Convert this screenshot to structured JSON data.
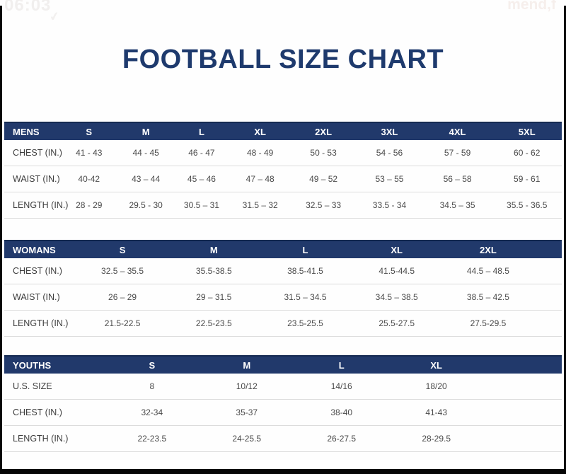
{
  "page": {
    "title": "FOOTBALL SIZE CHART",
    "title_color": "#1e3a6d",
    "header_bar_color": "#21396b",
    "frame_color": "#060606",
    "watermarks": {
      "top_left_time": "06:03",
      "top_left_icon": "check-mark",
      "top_right_text": "mend,f"
    }
  },
  "tables": [
    {
      "id": "mens",
      "header": {
        "label": "MENS",
        "cols": [
          "S",
          "M",
          "L",
          "XL",
          "2XL",
          "3XL",
          "4XL",
          "5XL"
        ]
      },
      "col_widths": [
        "10%",
        "10.4%",
        "10%",
        "10%",
        "11%",
        "11.7%",
        "12%",
        "12.4%",
        "12.5%"
      ],
      "filler_cols": 0,
      "rows": [
        {
          "label": "CHEST (IN.)",
          "values": [
            "41 - 43",
            "44 - 45",
            "46 - 47",
            "48 - 49",
            "50 - 53",
            "54 - 56",
            "57 - 59",
            "60 - 62"
          ]
        },
        {
          "label": "WAIST (IN.)",
          "values": [
            "40-42",
            "43 – 44",
            "45 – 46",
            "47 – 48",
            "49 – 52",
            "53 – 55",
            "56 – 58",
            "59 - 61"
          ]
        },
        {
          "label": "LENGTH (IN.)",
          "values": [
            "28 - 29",
            "29.5 - 30",
            "30.5 – 31",
            "31.5 – 32",
            "32.5 – 33",
            "33.5 - 34",
            "34.5 – 35",
            "35.5 - 36.5"
          ]
        }
      ]
    },
    {
      "id": "womans",
      "header": {
        "label": "WOMANS",
        "cols": [
          "S",
          "M",
          "L",
          "XL",
          "2XL"
        ]
      },
      "col_widths": [
        "13%",
        "16.4%",
        "16.4%",
        "16.4%",
        "16.4%",
        "16.4%",
        "5%"
      ],
      "filler_cols": 1,
      "rows": [
        {
          "label": "CHEST (IN.)",
          "values": [
            "32.5 – 35.5",
            "35.5-38.5",
            "38.5-41.5",
            "41.5-44.5",
            "44.5 – 48.5"
          ]
        },
        {
          "label": "WAIST (IN.)",
          "values": [
            "26 – 29",
            "29 – 31.5",
            "31.5 – 34.5",
            "34.5 – 38.5",
            "38.5 – 42.5"
          ]
        },
        {
          "label": "LENGTH (IN.)",
          "values": [
            "21.5-22.5",
            "22.5-23.5",
            "23.5-25.5",
            "25.5-27.5",
            "27.5-29.5"
          ]
        }
      ]
    },
    {
      "id": "youths",
      "header": {
        "label": "YOUTHS",
        "cols": [
          "S",
          "M",
          "L",
          "XL"
        ]
      },
      "col_widths": [
        "18%",
        "17%",
        "17%",
        "17%",
        "17%",
        "14%"
      ],
      "filler_cols": 1,
      "rows": [
        {
          "label": "U.S. SIZE",
          "values": [
            "8",
            "10/12",
            "14/16",
            "18/20"
          ]
        },
        {
          "label": "CHEST (IN.)",
          "values": [
            "32-34",
            "35-37",
            "38-40",
            "41-43"
          ]
        },
        {
          "label": "LENGTH (IN.)",
          "values": [
            "22-23.5",
            "24-25.5",
            "26-27.5",
            "28-29.5"
          ]
        }
      ]
    }
  ]
}
